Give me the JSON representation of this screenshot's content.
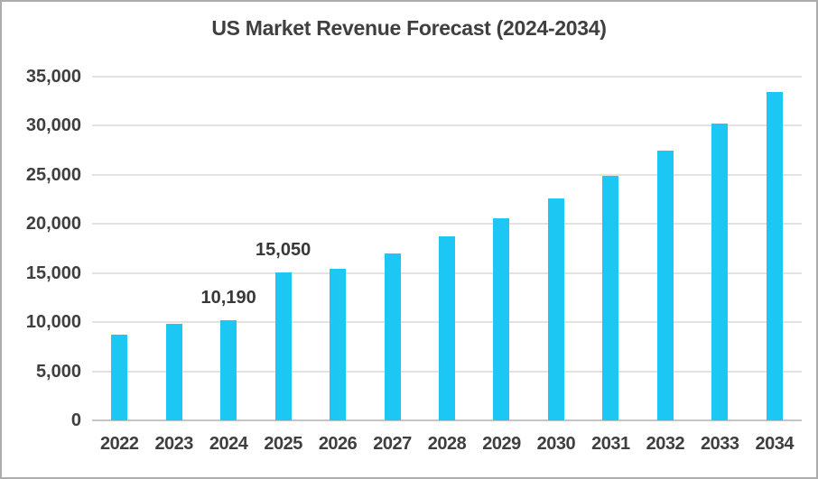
{
  "frame": {
    "background": "#ffffff",
    "border_color": "#acacac"
  },
  "chart_data": {
    "type": "bar",
    "title": "US Market Revenue Forecast (2024-2034)",
    "categories": [
      "2022",
      "2023",
      "2024",
      "2025",
      "2026",
      "2027",
      "2028",
      "2029",
      "2030",
      "2031",
      "2032",
      "2033",
      "2034"
    ],
    "values": [
      8700,
      9800,
      10190,
      15050,
      15450,
      17000,
      18700,
      20550,
      22600,
      24900,
      27450,
      30250,
      33400
    ],
    "data_labels": [
      {
        "category": "2024",
        "text": "10,190"
      },
      {
        "category": "2025",
        "text": "15,050"
      }
    ],
    "xlabel": "",
    "ylabel": "",
    "ylim": [
      0,
      35000
    ],
    "y_ticks": [
      {
        "value": 0,
        "label": "0"
      },
      {
        "value": 5000,
        "label": "5,000"
      },
      {
        "value": 10000,
        "label": "10,000"
      },
      {
        "value": 15000,
        "label": "15,000"
      },
      {
        "value": 20000,
        "label": "20,000"
      },
      {
        "value": 25000,
        "label": "25,000"
      },
      {
        "value": 30000,
        "label": "30,000"
      },
      {
        "value": 35000,
        "label": "35,000"
      }
    ],
    "grid": "horizontal",
    "legend": "none",
    "bar_color": "#1cc7f4",
    "grid_color": "#e2e2e2",
    "axis_line_color": "#c6c6c6",
    "text_color": "#3f3f3f",
    "data_label_color": "#383838"
  }
}
